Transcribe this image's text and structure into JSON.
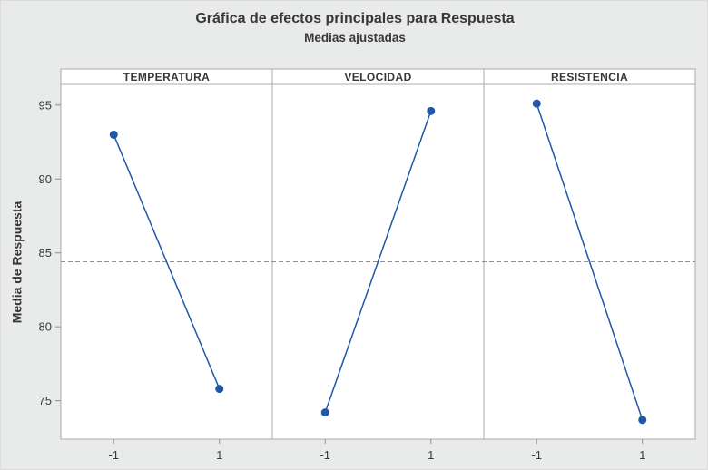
{
  "chart_data": {
    "type": "line",
    "title": "Gráfica de efectos principales para Respuesta",
    "subtitle": "Medias ajustadas",
    "ylabel": "Media de Respuesta",
    "yticks": [
      75,
      80,
      85,
      90,
      95
    ],
    "ylim": [
      72.4,
      96.4
    ],
    "reference_line": 84.4,
    "x_categories": [
      "-1",
      "1"
    ],
    "panels": [
      {
        "label": "TEMPERATURA",
        "points": [
          {
            "x": "-1",
            "y": 93.0
          },
          {
            "x": "1",
            "y": 75.8
          }
        ]
      },
      {
        "label": "VELOCIDAD",
        "points": [
          {
            "x": "-1",
            "y": 74.2
          },
          {
            "x": "1",
            "y": 94.6
          }
        ]
      },
      {
        "label": "RESISTENCIA",
        "points": [
          {
            "x": "-1",
            "y": 95.1
          },
          {
            "x": "1",
            "y": 73.7
          }
        ]
      }
    ],
    "legend": "none",
    "grid": "off",
    "colors": {
      "series": "#2057a7",
      "reference": "#8f8f8f",
      "axis": "#8f8f8f",
      "panel_border": "#ababab",
      "panel_fill": "#ffffff",
      "background": "#e9eaea",
      "text": "#3a3a3a"
    }
  }
}
